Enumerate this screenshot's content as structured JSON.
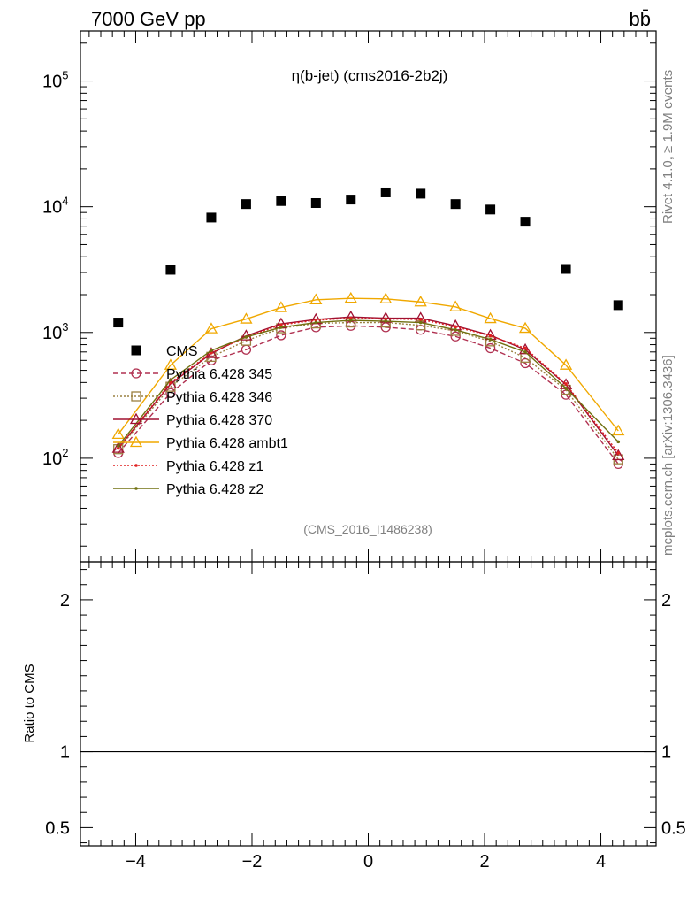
{
  "header": {
    "left_title": "7000 GeV pp",
    "right_title": "bb̄"
  },
  "side_labels": {
    "rivet": "Rivet 4.1.0, ≥ 1.9M events",
    "mcplots": "mcplots.cern.ch [arXiv:1306.3436]"
  },
  "plot_title": "η(b-jet) (cms2016-2b2j)",
  "analysis_tag": "(CMS_2016_I1486238)",
  "colors": {
    "CMS": "#000000",
    "345": "#b03050",
    "346": "#9a8040",
    "370": "#a01030",
    "ambt1": "#f0a800",
    "z1": "#e02020",
    "z2": "#707010"
  },
  "chart_data": [
    {
      "type": "scatter",
      "title": "η(b-jet) (cms2016-2b2j)",
      "xlabel": "",
      "ylabel": "",
      "yscale": "log",
      "xlim": [
        -4.95,
        4.95
      ],
      "ylim": [
        15,
        250000
      ],
      "x_ticks": [
        "−4",
        "−2",
        "0",
        "2",
        "4"
      ],
      "y_ticks": [
        "10^2",
        "10^3",
        "10^4",
        "10^5"
      ],
      "x": [
        -4.3,
        -3.4,
        -2.7,
        -2.1,
        -1.5,
        -0.9,
        -0.3,
        0.3,
        0.9,
        1.5,
        2.1,
        2.7,
        3.4,
        4.3
      ],
      "series": [
        {
          "name": "CMS",
          "key": "CMS",
          "marker": "square",
          "line": "none",
          "values": [
            1200,
            3150,
            8200,
            10500,
            11100,
            10700,
            11400,
            13000,
            12700,
            10500,
            9500,
            7600,
            3200,
            1650
          ]
        },
        {
          "name": "Pythia 6.428 345",
          "key": "345",
          "marker": "circle",
          "line": "dashed",
          "values": [
            110,
            330,
            600,
            730,
            950,
            1100,
            1130,
            1100,
            1050,
            930,
            750,
            570,
            320,
            90
          ]
        },
        {
          "name": "Pythia 6.428 346",
          "key": "346",
          "marker": "square-open",
          "line": "dotted",
          "values": [
            118,
            370,
            640,
            860,
            1080,
            1180,
            1200,
            1200,
            1140,
            1030,
            850,
            630,
            350,
            98
          ]
        },
        {
          "name": "Pythia 6.428 370",
          "key": "370",
          "marker": "triangle",
          "line": "solid",
          "values": [
            120,
            390,
            680,
            940,
            1170,
            1270,
            1330,
            1300,
            1300,
            1130,
            950,
            730,
            385,
            105
          ]
        },
        {
          "name": "Pythia 6.428 ambt1",
          "key": "ambt1",
          "marker": "triangle",
          "line": "solid",
          "values": [
            155,
            550,
            1070,
            1280,
            1580,
            1820,
            1870,
            1850,
            1750,
            1600,
            1290,
            1080,
            550,
            165
          ]
        },
        {
          "name": "Pythia 6.428 z1",
          "key": "z1",
          "marker": "dot",
          "line": "dotted",
          "values": [
            120,
            400,
            690,
            920,
            1150,
            1250,
            1300,
            1280,
            1270,
            1110,
            940,
            750,
            390,
            110
          ]
        },
        {
          "name": "Pythia 6.428 z2",
          "key": "z2",
          "marker": "dot",
          "line": "solid",
          "values": [
            125,
            420,
            720,
            920,
            1100,
            1200,
            1250,
            1230,
            1200,
            1050,
            880,
            700,
            360,
            135
          ]
        }
      ]
    },
    {
      "type": "line",
      "title": "",
      "xlabel": "",
      "ylabel": "Ratio to CMS",
      "xlim": [
        -4.95,
        4.95
      ],
      "ylim": [
        0.38,
        2.25
      ],
      "y_ticks": [
        0.5,
        1,
        2
      ],
      "y_tick_labels": [
        "0.5",
        "1",
        "2"
      ],
      "x_ticks": [
        "−4",
        "−2",
        "0",
        "2",
        "4"
      ],
      "reference_line": 1
    }
  ]
}
